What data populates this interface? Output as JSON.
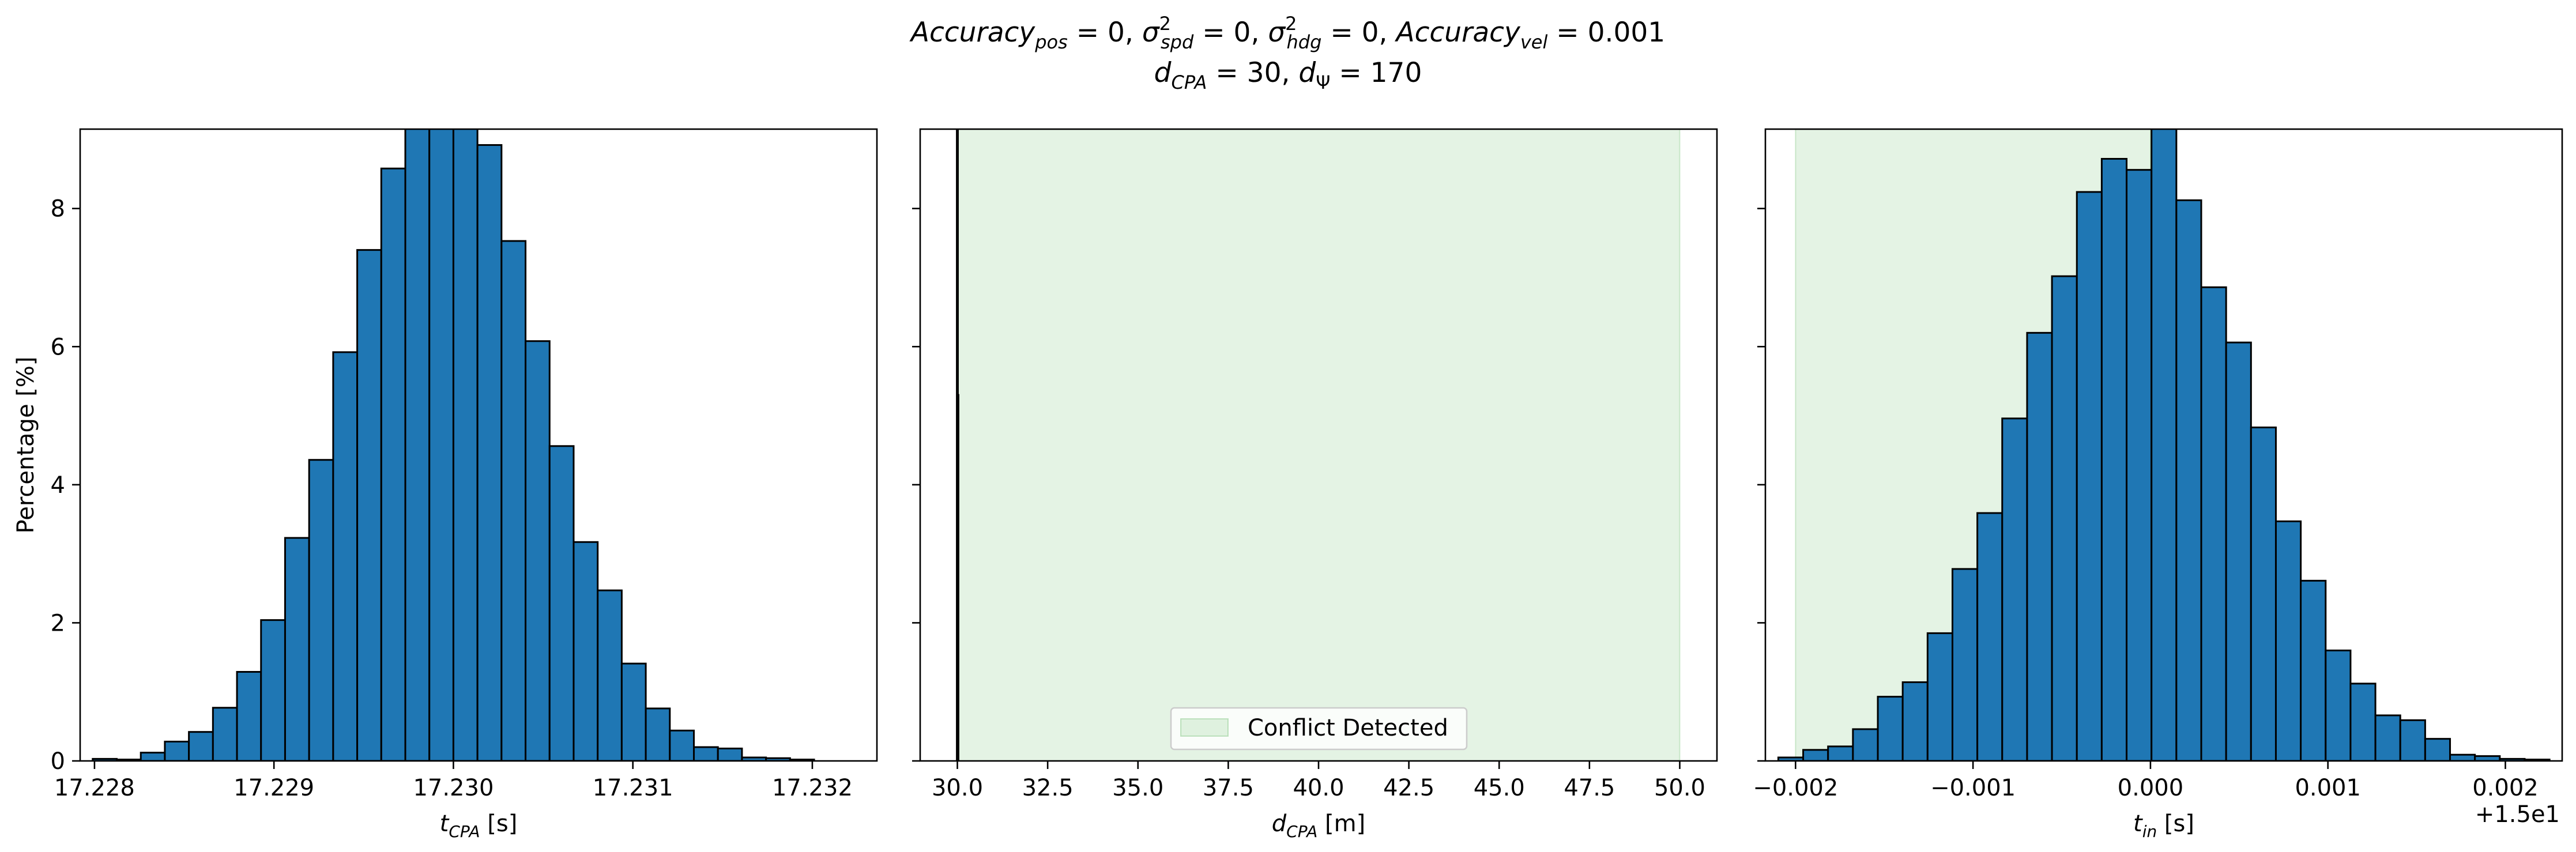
{
  "figure": {
    "title_line1": "Accuracy_pos = 0, σ²_spd = 0, σ²_hdg = 0, Accuracy_vel = 0.001",
    "title_line2": "d_CPA = 30, d_Ψ = 170"
  },
  "colors": {
    "bar_fill": "#1f77b4",
    "bar_edge": "#000000",
    "conflict_span": "#2ca02c"
  },
  "chart_data": [
    {
      "type": "bar",
      "panel": "t_cpa",
      "xlabel": "t_CPA [s]",
      "ylabel": "Percentage [%]",
      "xlim": [
        17.22792,
        17.23236
      ],
      "ylim": [
        0,
        9.15
      ],
      "xticks": [
        17.228,
        17.229,
        17.23,
        17.231,
        17.232
      ],
      "xtick_labels": [
        "17.228",
        "17.229",
        "17.230",
        "17.231",
        "17.232"
      ],
      "yticks": [
        0,
        2,
        4,
        6,
        8
      ],
      "ytick_labels": [
        "0",
        "2",
        "4",
        "6",
        "8"
      ],
      "bin_start": 17.22799,
      "bin_width": 0.000134,
      "values": [
        0.03,
        0.02,
        0.12,
        0.28,
        0.42,
        0.77,
        1.29,
        2.04,
        3.23,
        4.36,
        5.92,
        7.4,
        8.58,
        9.3,
        9.5,
        9.2,
        8.92,
        7.53,
        6.08,
        4.56,
        3.17,
        2.47,
        1.41,
        0.76,
        0.44,
        0.2,
        0.18,
        0.05,
        0.04,
        0.02
      ]
    },
    {
      "type": "bar",
      "panel": "d_cpa",
      "xlabel": "d_CPA [m]",
      "xlim": [
        28.97,
        51.03
      ],
      "ylim": [
        0,
        9.15
      ],
      "xticks": [
        30,
        32.5,
        35,
        37.5,
        40,
        42.5,
        45,
        47.5,
        50
      ],
      "xtick_labels": [
        "30.0",
        "32.5",
        "35.0",
        "37.5",
        "40.0",
        "42.5",
        "45.0",
        "47.5",
        "50.0"
      ],
      "yticks": [
        0,
        2,
        4,
        6,
        8
      ],
      "bars": [
        {
          "x0": 29.985,
          "x1": 30.015,
          "value": 9.5
        },
        {
          "x0": 30.0,
          "x1": 30.03,
          "value": 5.3
        }
      ],
      "conflict_span": [
        30.0,
        50.0
      ],
      "legend": {
        "label": "Conflict Detected",
        "loc": "lower center"
      }
    },
    {
      "type": "bar",
      "panel": "t_in",
      "xlabel": "t_in [s]",
      "offset_text": "+1.5e1",
      "xlim": [
        -0.00217,
        0.00232
      ],
      "ylim": [
        0,
        9.15
      ],
      "xticks": [
        -0.002,
        -0.001,
        0.0,
        0.001,
        0.002
      ],
      "xtick_labels": [
        "−0.002",
        "−0.001",
        "0.000",
        "0.001",
        "0.002"
      ],
      "yticks": [
        0,
        2,
        4,
        6,
        8
      ],
      "bin_start": -0.0020972,
      "bin_width": 0.0001402,
      "values": [
        0.05,
        0.16,
        0.21,
        0.46,
        0.93,
        1.14,
        1.85,
        2.78,
        3.59,
        4.96,
        6.2,
        7.02,
        8.24,
        8.72,
        8.56,
        9.5,
        8.12,
        6.86,
        6.06,
        4.83,
        3.47,
        2.61,
        1.6,
        1.12,
        0.66,
        0.59,
        0.32,
        0.09,
        0.07,
        0.03,
        0.02
      ],
      "conflict_span": [
        -0.002,
        0.0
      ]
    }
  ]
}
